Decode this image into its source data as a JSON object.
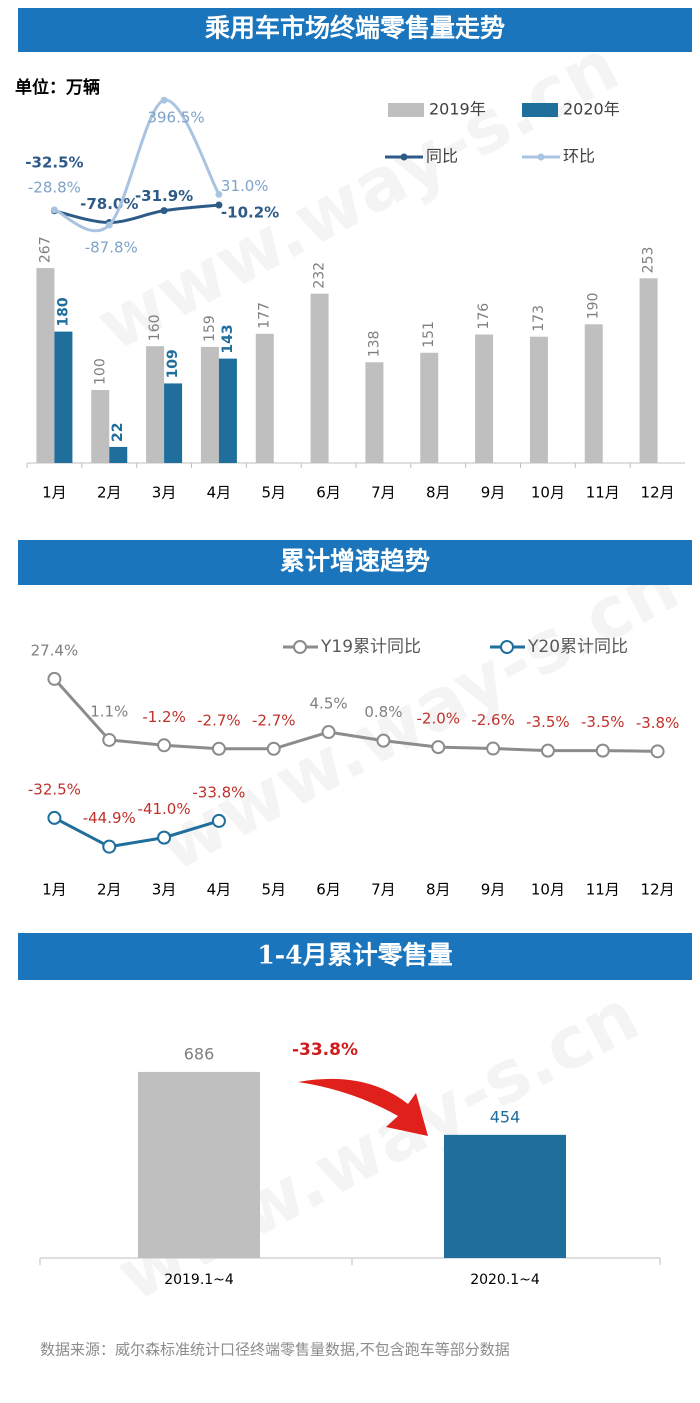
{
  "chart_data": [
    {
      "type": "bar",
      "title": "乘用车市场终端零售量走势",
      "unit": "单位：万辆",
      "categories": [
        "1月",
        "2月",
        "3月",
        "4月",
        "5月",
        "6月",
        "7月",
        "8月",
        "9月",
        "10月",
        "11月",
        "12月"
      ],
      "series": [
        {
          "name": "2019年",
          "color": "#bfbfbf",
          "values": [
            267,
            100,
            160,
            159,
            177,
            232,
            138,
            151,
            176,
            173,
            190,
            253
          ]
        },
        {
          "name": "2020年",
          "color": "#1f6e9c",
          "values": [
            180,
            22,
            109,
            143,
            null,
            null,
            null,
            null,
            null,
            null,
            null,
            null
          ]
        },
        {
          "name": "同比",
          "type": "line",
          "axis": "y2",
          "color": "#2e5a88",
          "values": [
            -32.5,
            -78.0,
            -31.9,
            -10.2,
            null,
            null,
            null,
            null,
            null,
            null,
            null,
            null
          ],
          "value_labels": [
            "-32.5%",
            "-78.0%",
            "-31.9%",
            "-10.2%",
            null,
            null,
            null,
            null,
            null,
            null,
            null,
            null
          ]
        },
        {
          "name": "环比",
          "type": "line",
          "axis": "y2",
          "color": "#a9c4e0",
          "values": [
            -28.8,
            -87.8,
            396.5,
            31.0,
            null,
            null,
            null,
            null,
            null,
            null,
            null,
            null
          ],
          "value_labels": [
            "-28.8%",
            "-87.8%",
            "396.5%",
            "31.0%",
            null,
            null,
            null,
            null,
            null,
            null,
            null,
            null
          ]
        }
      ],
      "ylim": [
        0,
        350
      ],
      "y2lim": [
        -200,
        500
      ]
    },
    {
      "type": "line",
      "title": "累计增速趋势",
      "categories": [
        "1月",
        "2月",
        "3月",
        "4月",
        "5月",
        "6月",
        "7月",
        "8月",
        "9月",
        "10月",
        "11月",
        "12月"
      ],
      "series": [
        {
          "name": "Y19累计同比",
          "color": "#8c8c8c",
          "values": [
            27.4,
            1.1,
            -1.2,
            -2.7,
            -2.7,
            4.5,
            0.8,
            -2.0,
            -2.6,
            -3.5,
            -3.5,
            -3.8
          ],
          "value_labels": [
            "27.4%",
            "1.1%",
            "-1.2%",
            "-2.7%",
            "-2.7%",
            "4.5%",
            "0.8%",
            "-2.0%",
            "-2.6%",
            "-3.5%",
            "-3.5%",
            "-3.8%"
          ]
        },
        {
          "name": "Y20累计同比",
          "color": "#1f6e9c",
          "values": [
            -32.5,
            -44.9,
            -41.0,
            -33.8,
            null,
            null,
            null,
            null,
            null,
            null,
            null,
            null
          ],
          "value_labels": [
            "-32.5%",
            "-44.9%",
            "-41.0%",
            "-33.8%",
            null,
            null,
            null,
            null,
            null,
            null,
            null,
            null
          ]
        }
      ],
      "ylim": [
        -50,
        30
      ]
    },
    {
      "type": "bar",
      "title": "1-4月累计零售量",
      "categories": [
        "2019.1~4",
        "2020.1~4"
      ],
      "values": [
        686,
        454
      ],
      "colors": [
        "#bfbfbf",
        "#1f6e9c"
      ],
      "annotation": "-33.8%",
      "ylim": [
        0,
        800
      ]
    }
  ],
  "source": "数据来源：威尔森标准统计口径终端零售量数据,不包含跑车等部分数据",
  "watermark": "www.way-s.cn"
}
